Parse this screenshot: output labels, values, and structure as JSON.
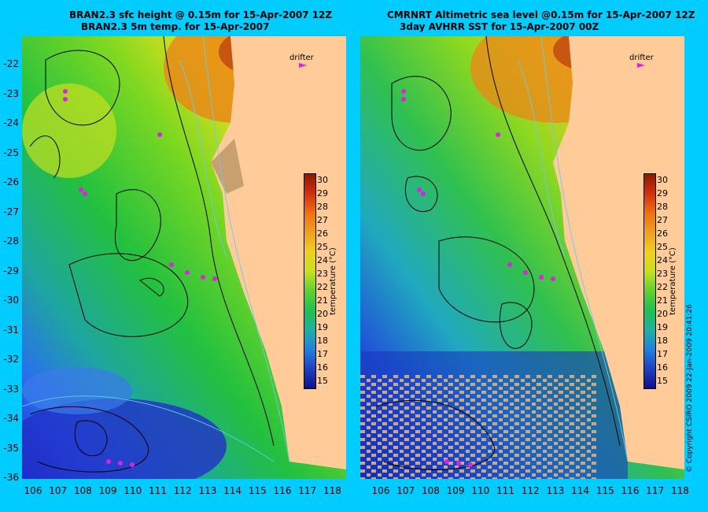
{
  "left_panel": {
    "title_line1": "BRAN2.3 sfc height @ 0.15m for 15-Apr-2007 12Z",
    "title_line2": "BRAN2.3 5m temp. for 15-Apr-2007",
    "drifter_label": "drifter"
  },
  "right_panel": {
    "title_line1": "CMRNRT Altimetric sea level  @0.15m  for 15-Apr-2007 12Z",
    "title_line2": "3day AVHRR SST for 15-Apr-2007 00Z",
    "drifter_label": "drifter"
  },
  "axes": {
    "y_ticks": [
      "-22",
      "-23",
      "-24",
      "-25",
      "-26",
      "-27",
      "-28",
      "-29",
      "-30",
      "-31",
      "-32",
      "-33",
      "-34",
      "-35",
      "-36"
    ],
    "x_ticks": [
      "106",
      "107",
      "108",
      "109",
      "110",
      "111",
      "112",
      "113",
      "114",
      "115",
      "116",
      "117",
      "118"
    ]
  },
  "colorbar": {
    "label": "temperature (°C)",
    "ticks": [
      "30",
      "29",
      "28",
      "27",
      "26",
      "25",
      "24",
      "23",
      "22",
      "21",
      "20",
      "19",
      "18",
      "17",
      "16",
      "15"
    ],
    "range": [
      15,
      30
    ]
  },
  "copyright": "© Copyright CSIRO 2009   22-Jan-2009 20:41:26"
}
